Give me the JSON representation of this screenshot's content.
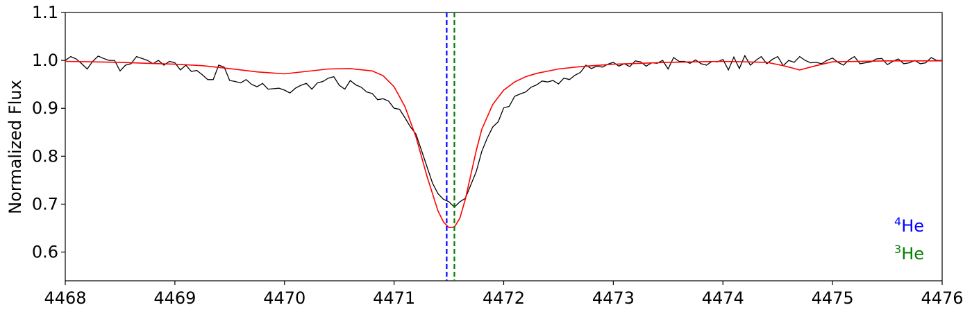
{
  "chart_data": {
    "type": "line",
    "title": "",
    "xlabel": "",
    "ylabel": "Normalized Flux",
    "xlim": [
      4468,
      4476
    ],
    "ylim": [
      0.54,
      1.1
    ],
    "xticks": [
      4468,
      4469,
      4470,
      4471,
      4472,
      4473,
      4474,
      4475,
      4476
    ],
    "yticks": [
      0.6,
      0.7,
      0.8,
      0.9,
      1.0,
      1.1
    ],
    "xtick_labels": [
      "4468",
      "4469",
      "4470",
      "4471",
      "4472",
      "4473",
      "4474",
      "4475",
      "4476"
    ],
    "ytick_labels": [
      "0.6",
      "0.7",
      "0.8",
      "0.9",
      "1.0",
      "1.1"
    ],
    "grid": false,
    "legend_placement": "bottom-right",
    "series": [
      {
        "color": "#000000",
        "x": [
          4468.0,
          4468.05,
          4468.1,
          4468.15,
          4468.2,
          4468.25,
          4468.3,
          4468.35,
          4468.4,
          4468.45,
          4468.5,
          4468.55,
          4468.6,
          4468.65,
          4468.7,
          4468.75,
          4468.8,
          4468.85,
          4468.9,
          4468.95,
          4469.0,
          4469.05,
          4469.1,
          4469.15,
          4469.2,
          4469.25,
          4469.3,
          4469.35,
          4469.4,
          4469.45,
          4469.5,
          4469.55,
          4469.6,
          4469.65,
          4469.7,
          4469.75,
          4469.8,
          4469.85,
          4469.9,
          4469.95,
          4470.0,
          4470.05,
          4470.1,
          4470.15,
          4470.2,
          4470.25,
          4470.3,
          4470.35,
          4470.4,
          4470.45,
          4470.5,
          4470.55,
          4470.6,
          4470.65,
          4470.7,
          4470.75,
          4470.8,
          4470.85,
          4470.9,
          4470.95,
          4471.0,
          4471.05,
          4471.1,
          4471.15,
          4471.2,
          4471.25,
          4471.3,
          4471.35,
          4471.4,
          4471.45,
          4471.5,
          4471.55,
          4471.6,
          4471.65,
          4471.7,
          4471.75,
          4471.8,
          4471.85,
          4471.9,
          4471.95,
          4472.0,
          4472.05,
          4472.1,
          4472.15,
          4472.2,
          4472.25,
          4472.3,
          4472.35,
          4472.4,
          4472.45,
          4472.5,
          4472.55,
          4472.6,
          4472.65,
          4472.7,
          4472.75,
          4472.8,
          4472.85,
          4472.9,
          4472.95,
          4473.0,
          4473.05,
          4473.1,
          4473.15,
          4473.2,
          4473.25,
          4473.3,
          4473.35,
          4473.4,
          4473.45,
          4473.5,
          4473.55,
          4473.6,
          4473.65,
          4473.7,
          4473.75,
          4473.8,
          4473.85,
          4473.9,
          4473.95,
          4474.0,
          4474.05,
          4474.1,
          4474.15,
          4474.2,
          4474.25,
          4474.3,
          4474.35,
          4474.4,
          4474.45,
          4474.5,
          4474.55,
          4474.6,
          4474.65,
          4474.7,
          4474.75,
          4474.8,
          4474.85,
          4474.9,
          4474.95,
          4475.0,
          4475.05,
          4475.1,
          4475.15,
          4475.2,
          4475.25,
          4475.3,
          4475.35,
          4475.4,
          4475.45,
          4475.5,
          4475.55,
          4475.6,
          4475.65,
          4475.7,
          4475.75,
          4475.8,
          4475.85,
          4475.9,
          4475.95,
          4476.0
        ],
        "y": [
          1.0,
          1.008,
          1.003,
          0.993,
          0.982,
          0.998,
          1.009,
          1.004,
          1.0,
          1.0,
          0.978,
          0.99,
          0.993,
          1.008,
          1.004,
          1.0,
          0.993,
          1.0,
          0.99,
          0.998,
          0.995,
          0.98,
          0.99,
          0.977,
          0.979,
          0.97,
          0.96,
          0.96,
          0.99,
          0.986,
          0.958,
          0.956,
          0.953,
          0.96,
          0.95,
          0.945,
          0.952,
          0.94,
          0.941,
          0.942,
          0.938,
          0.932,
          0.942,
          0.948,
          0.952,
          0.94,
          0.953,
          0.956,
          0.963,
          0.966,
          0.948,
          0.94,
          0.958,
          0.949,
          0.944,
          0.934,
          0.931,
          0.918,
          0.92,
          0.915,
          0.9,
          0.898,
          0.88,
          0.861,
          0.846,
          0.812,
          0.778,
          0.744,
          0.722,
          0.71,
          0.705,
          0.694,
          0.705,
          0.712,
          0.74,
          0.768,
          0.81,
          0.838,
          0.861,
          0.872,
          0.901,
          0.904,
          0.925,
          0.93,
          0.934,
          0.944,
          0.949,
          0.957,
          0.955,
          0.958,
          0.951,
          0.963,
          0.96,
          0.969,
          0.975,
          0.99,
          0.983,
          0.988,
          0.986,
          0.992,
          0.996,
          0.988,
          0.993,
          0.987,
          0.999,
          0.997,
          0.988,
          0.995,
          0.994,
          1.0,
          0.982,
          1.006,
          0.998,
          0.998,
          0.994,
          1.001,
          0.993,
          0.99,
          0.998,
          0.997,
          1.002,
          0.98,
          1.007,
          0.983,
          1.01,
          0.99,
          1.0,
          1.008,
          0.993,
          1.002,
          1.008,
          0.989,
          1.0,
          0.996,
          1.008,
          1.0,
          0.995,
          0.996,
          0.993,
          1.0,
          1.005,
          0.996,
          0.99,
          1.001,
          1.008,
          0.993,
          0.995,
          0.997,
          1.003,
          1.004,
          0.991,
          0.998,
          1.003,
          0.993,
          0.995,
          1.0,
          0.993,
          0.995,
          1.006,
          1.0,
          1.0
        ]
      },
      {
        "color": "#ff0000",
        "x": [
          4468.0,
          4468.25,
          4468.5,
          4468.75,
          4469.0,
          4469.25,
          4469.5,
          4469.75,
          4470.0,
          4470.2,
          4470.4,
          4470.6,
          4470.8,
          4470.9,
          4471.0,
          4471.1,
          4471.2,
          4471.3,
          4471.4,
          4471.45,
          4471.5,
          4471.55,
          4471.6,
          4471.65,
          4471.7,
          4471.75,
          4471.8,
          4471.9,
          4472.0,
          4472.1,
          4472.2,
          4472.3,
          4472.5,
          4472.7,
          4473.0,
          4473.5,
          4474.0,
          4474.4,
          4474.55,
          4474.7,
          4474.85,
          4475.0,
          4475.5,
          4476.0
        ],
        "y": [
          0.998,
          0.997,
          0.996,
          0.994,
          0.992,
          0.989,
          0.983,
          0.976,
          0.972,
          0.977,
          0.982,
          0.983,
          0.978,
          0.968,
          0.945,
          0.903,
          0.84,
          0.758,
          0.686,
          0.663,
          0.651,
          0.652,
          0.671,
          0.71,
          0.761,
          0.812,
          0.856,
          0.908,
          0.938,
          0.955,
          0.966,
          0.973,
          0.982,
          0.987,
          0.992,
          0.996,
          0.998,
          0.996,
          0.989,
          0.98,
          0.989,
          0.997,
          0.999,
          0.999
        ]
      }
    ],
    "vlines": [
      {
        "x": 4471.48,
        "color": "#0000ff",
        "style": "dashed"
      },
      {
        "x": 4471.55,
        "color": "#008000",
        "style": "dashed"
      }
    ],
    "legend": [
      {
        "sup": "4",
        "base": "He",
        "color": "#0000ff"
      },
      {
        "sup": "3",
        "base": "He",
        "color": "#008000"
      }
    ]
  }
}
